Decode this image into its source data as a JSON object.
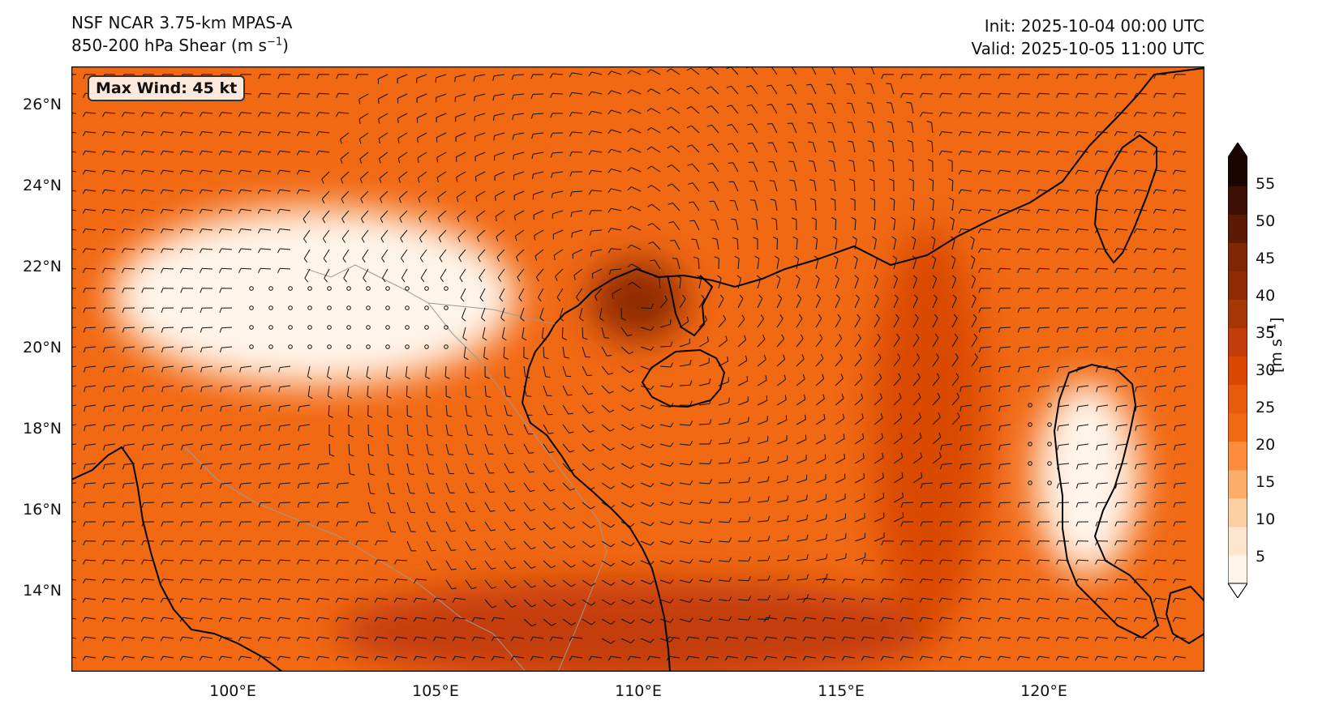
{
  "header": {
    "model": "NSF NCAR 3.75-km MPAS-A",
    "field_prefix": "850-200 hPa Shear (m s",
    "field_exp": "−1",
    "field_suffix": ")",
    "init": "Init: 2025-10-04 00:00 UTC",
    "valid": "Valid: 2025-10-05 11:00 UTC"
  },
  "annotation": {
    "max_wind": "Max Wind: 45 kt"
  },
  "axes": {
    "lat_labels": [
      "26°N",
      "24°N",
      "22°N",
      "20°N",
      "18°N",
      "16°N",
      "14°N"
    ],
    "lon_labels": [
      "100°E",
      "105°E",
      "110°E",
      "115°E",
      "120°E"
    ],
    "lat_range": [
      12,
      27
    ],
    "lon_range": [
      96,
      124
    ]
  },
  "colorbar": {
    "ticks": [
      "55",
      "50",
      "45",
      "40",
      "35",
      "30",
      "25",
      "20",
      "15",
      "10",
      "5"
    ],
    "unit_prefix": "[m s",
    "unit_exp": "−1",
    "unit_suffix": "]",
    "colors": [
      "#fff5eb",
      "#fee6ce",
      "#fdd0a2",
      "#fdae6b",
      "#fd8d3c",
      "#f16913",
      "#e85a0c",
      "#d94801",
      "#c43c0b",
      "#a63603",
      "#8f2a05",
      "#7f2704",
      "#5c1a04",
      "#3b0f02",
      "#1a0600"
    ],
    "range": [
      0,
      58
    ]
  },
  "map": {
    "shading_features": [
      {
        "name": "eye-core",
        "lon": 110.0,
        "lat": 21.2,
        "rlon": 1.2,
        "rlat": 1.0,
        "speed": 40
      },
      {
        "name": "south-band",
        "lon": 110.0,
        "lat": 13.0,
        "rlon": 7.5,
        "rlat": 1.3,
        "speed": 34
      },
      {
        "name": "east-jet",
        "lon": 117.2,
        "lat": 18.0,
        "rlon": 1.4,
        "rlat": 5.0,
        "speed": 30
      },
      {
        "name": "calm-inland",
        "lon": 102.0,
        "lat": 21.3,
        "rlon": 5.0,
        "rlat": 2.2,
        "speed": 3
      },
      {
        "name": "calm-luzon",
        "lon": 121.1,
        "lat": 16.8,
        "rlon": 1.3,
        "rlat": 2.4,
        "speed": 3
      }
    ]
  }
}
